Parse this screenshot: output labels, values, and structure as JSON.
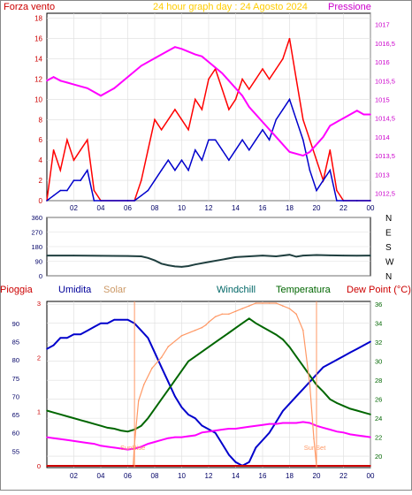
{
  "chart_data": [
    {
      "type": "line",
      "title": "24 hour graph day : 24 Agosto 2024",
      "left_label": "Forza vento",
      "right_label": "Pressione",
      "x_ticks": [
        "02",
        "04",
        "06",
        "08",
        "10",
        "12",
        "14",
        "16",
        "18",
        "20",
        "22",
        "00"
      ],
      "y_left_ticks": [
        "0",
        "2",
        "4",
        "6",
        "8",
        "10",
        "12",
        "14",
        "16",
        "18"
      ],
      "y_left_range": [
        0,
        18.5
      ],
      "y_right_ticks": [
        "1012,5",
        "1013",
        "1013,5",
        "1014",
        "1014,5",
        "1015",
        "1015,5",
        "1016",
        "1016,5",
        "1017"
      ],
      "y_right_range": [
        1012.3,
        1017.3
      ],
      "colors": {
        "gust": "#ff0000",
        "wind": "#0000cc",
        "pressure": "#ff00ff"
      },
      "series": [
        {
          "name": "",
          "axis": "left",
          "x": [
            0,
            0.5,
            1,
            1.5,
            2,
            2.5,
            3,
            3.5,
            4,
            6,
            6.5,
            7,
            7.5,
            8,
            8.5,
            9,
            9.5,
            10,
            10.5,
            11,
            11.5,
            12,
            12.5,
            13,
            13.5,
            14,
            14.5,
            15,
            15.5,
            16,
            16.5,
            17,
            17.5,
            18,
            18.5,
            19,
            19.5,
            20,
            20.5,
            21,
            21.5,
            22,
            23,
            24
          ],
          "values": [
            0,
            5,
            3,
            6,
            4,
            5,
            6,
            1,
            0,
            0,
            0,
            2,
            5,
            8,
            7,
            8,
            9,
            8,
            7,
            10,
            9,
            12,
            13,
            11,
            9,
            10,
            12,
            11,
            12,
            13,
            12,
            13,
            14,
            16,
            12,
            8,
            6,
            4,
            2,
            5,
            1,
            0,
            0,
            0
          ]
        },
        {
          "name": "",
          "axis": "left",
          "x": [
            0,
            0.5,
            1,
            1.5,
            2,
            2.5,
            3,
            3.5,
            4,
            6,
            6.5,
            7,
            7.5,
            8,
            8.5,
            9,
            9.5,
            10,
            10.5,
            11,
            11.5,
            12,
            12.5,
            13,
            13.5,
            14,
            14.5,
            15,
            15.5,
            16,
            16.5,
            17,
            17.5,
            18,
            18.5,
            19,
            19.5,
            20,
            20.5,
            21,
            21.5,
            22,
            23,
            24
          ],
          "values": [
            0,
            0.5,
            1,
            1,
            2,
            2,
            3,
            0,
            0,
            0,
            0,
            0.5,
            1,
            2,
            3,
            4,
            3,
            4,
            3,
            5,
            4,
            6,
            6,
            5,
            4,
            5,
            6,
            5,
            6,
            7,
            6,
            8,
            9,
            10,
            8,
            6,
            3,
            1,
            2,
            3,
            0,
            0,
            0,
            0
          ]
        },
        {
          "name": "",
          "axis": "right",
          "x": [
            0,
            0.5,
            1,
            1.5,
            2,
            3,
            4,
            5,
            6,
            7,
            8,
            9,
            9.5,
            10,
            11,
            11.5,
            12,
            13,
            14,
            14.5,
            15,
            16,
            17,
            17.5,
            18,
            19,
            19.5,
            20,
            20.5,
            21,
            22,
            23,
            23.5,
            24
          ],
          "values": [
            1015.5,
            1015.6,
            1015.5,
            1015.45,
            1015.4,
            1015.3,
            1015.1,
            1015.3,
            1015.6,
            1015.9,
            1016.1,
            1016.3,
            1016.4,
            1016.35,
            1016.2,
            1016.15,
            1016.0,
            1015.7,
            1015.3,
            1015.1,
            1014.8,
            1014.4,
            1014.0,
            1013.8,
            1013.6,
            1013.5,
            1013.6,
            1013.8,
            1014.0,
            1014.3,
            1014.5,
            1014.7,
            1014.6,
            1014.6
          ]
        }
      ]
    },
    {
      "type": "line",
      "y_ticks": [
        "0",
        "90",
        "180",
        "270",
        "360"
      ],
      "y_range": [
        0,
        360
      ],
      "dir_labels": [
        "N",
        "W",
        "S",
        "E",
        "N"
      ],
      "series": [
        {
          "name": "",
          "color": "#1f3f3f",
          "x": [
            0,
            2,
            4,
            6,
            7,
            7.5,
            8,
            8.5,
            9,
            9.5,
            10,
            10.5,
            11,
            12,
            13,
            14,
            15,
            16,
            17,
            18,
            18.5,
            19,
            20,
            21,
            22,
            23,
            24
          ],
          "values": [
            125,
            125,
            123,
            122,
            120,
            110,
            95,
            75,
            65,
            58,
            55,
            60,
            70,
            85,
            100,
            115,
            120,
            125,
            120,
            130,
            118,
            125,
            128,
            126,
            125,
            124,
            125
          ]
        }
      ]
    },
    {
      "type": "line",
      "labels": [
        "Pioggia",
        "Umidita",
        "Solar",
        "Windchill",
        "Temperatura",
        "Dew Point (°C)"
      ],
      "label_colors": [
        "#cc0000",
        "#000099",
        "#cc9966",
        "#006666",
        "#006600",
        "#cc0000"
      ],
      "x_ticks": [
        "02",
        "04",
        "06",
        "08",
        "10",
        "12",
        "14",
        "16",
        "18",
        "20",
        "22",
        "00"
      ],
      "y_left_ticks": [
        "55",
        "60",
        "65",
        "70",
        "75",
        "80",
        "85",
        "90"
      ],
      "y_left_range": [
        50.5,
        96
      ],
      "y_rain_ticks": [
        "0",
        "1",
        "2",
        "3"
      ],
      "y_right_ticks": [
        "20",
        "22",
        "24",
        "26",
        "28",
        "30",
        "32",
        "34",
        "36"
      ],
      "y_right_range": [
        18.8,
        36.3
      ],
      "annotations": [
        "SunRise",
        "SunSet"
      ],
      "series": [
        {
          "name": "Umidita",
          "color": "#0000cc",
          "axis": "left",
          "x": [
            0,
            0.5,
            1,
            1.5,
            2,
            2.5,
            3,
            3.5,
            4,
            4.5,
            5,
            5.5,
            6,
            6.5,
            7,
            7.5,
            8,
            8.5,
            9,
            9.5,
            10,
            10.5,
            11,
            11.5,
            12,
            12.5,
            13,
            13.5,
            14,
            14.5,
            15,
            15.5,
            16,
            16.5,
            17,
            17.5,
            18,
            18.5,
            19,
            19.5,
            20,
            20.5,
            21,
            21.5,
            22,
            22.5,
            23,
            23.5,
            24
          ],
          "values": [
            83,
            84,
            86,
            86,
            87,
            87,
            88,
            89,
            90,
            90,
            91,
            91,
            91,
            90,
            88,
            86,
            82,
            78,
            74,
            70,
            67,
            65,
            64,
            62,
            61,
            60,
            57,
            54,
            52,
            51,
            52,
            56,
            58,
            60,
            63,
            66,
            68,
            70,
            72,
            74,
            76,
            78,
            79,
            80,
            81,
            82,
            83,
            84,
            85
          ]
        },
        {
          "name": "Temperatura",
          "color": "#006600",
          "axis": "right",
          "x": [
            0,
            0.5,
            1,
            1.5,
            2,
            2.5,
            3,
            3.5,
            4,
            4.5,
            5,
            5.5,
            6,
            6.5,
            7,
            7.5,
            8,
            8.5,
            9,
            9.5,
            10,
            10.5,
            11,
            11.5,
            12,
            12.5,
            13,
            13.5,
            14,
            14.5,
            15,
            15.5,
            16,
            16.5,
            17,
            17.5,
            18,
            18.5,
            19,
            19.5,
            20,
            20.5,
            21,
            21.5,
            22,
            22.5,
            23,
            23.5,
            24
          ],
          "values": [
            24.8,
            24.6,
            24.4,
            24.2,
            24,
            23.8,
            23.6,
            23.4,
            23.2,
            23,
            22.9,
            22.7,
            22.6,
            22.8,
            23.2,
            24,
            25,
            26,
            27,
            28,
            29,
            30,
            30.5,
            31,
            31.5,
            32,
            32.5,
            33,
            33.5,
            34,
            34.5,
            34,
            33.6,
            33.2,
            32.8,
            32.3,
            31.5,
            30.5,
            29.5,
            28.5,
            27.5,
            26.8,
            26,
            25.6,
            25.3,
            25,
            24.8,
            24.6,
            24.4
          ]
        },
        {
          "name": "Dew Point (°C)",
          "color": "#ff00ff",
          "axis": "right",
          "x": [
            0,
            0.5,
            1,
            1.5,
            2,
            2.5,
            3,
            3.5,
            4,
            4.5,
            5,
            5.5,
            6,
            6.5,
            7,
            7.5,
            8,
            8.5,
            9,
            9.5,
            10,
            10.5,
            11,
            11.5,
            12,
            12.5,
            13,
            13.5,
            14,
            14.5,
            15,
            15.5,
            16,
            16.5,
            17,
            17.5,
            18,
            18.5,
            19,
            19.5,
            20,
            20.5,
            21,
            21.5,
            22,
            22.5,
            23,
            23.5,
            24
          ],
          "values": [
            22,
            21.9,
            21.8,
            21.7,
            21.6,
            21.5,
            21.4,
            21.3,
            21.1,
            21,
            20.9,
            20.8,
            20.7,
            20.8,
            21,
            21.3,
            21.5,
            21.7,
            21.9,
            22,
            22,
            22.1,
            22.2,
            22.5,
            22.6,
            22.7,
            22.8,
            22.9,
            22.9,
            23,
            23.1,
            23.2,
            23.3,
            23.4,
            23.4,
            23.5,
            23.5,
            23.5,
            23.6,
            23.5,
            23.2,
            23,
            22.8,
            22.6,
            22.5,
            22.3,
            22.2,
            22.1,
            22
          ]
        },
        {
          "name": "Solar",
          "color": "#ff9966",
          "axis": "rain",
          "x": [
            0,
            6.4,
            6.5,
            6.8,
            7.2,
            7.8,
            8.5,
            9,
            10,
            11,
            11.5,
            11.8,
            12,
            12.5,
            13,
            13.5,
            14,
            14.5,
            15,
            15.5,
            16,
            16.5,
            17,
            17.5,
            18,
            18.5,
            19,
            19.5,
            19.8,
            20
          ],
          "values": [
            0,
            0,
            0.4,
            1.2,
            1.5,
            1.8,
            2.0,
            2.2,
            2.4,
            2.5,
            2.55,
            2.6,
            2.65,
            2.75,
            2.8,
            2.8,
            2.85,
            2.9,
            2.95,
            3.0,
            3.0,
            3.0,
            3.0,
            2.95,
            2.9,
            2.8,
            2.5,
            1.5,
            0.5,
            0
          ]
        },
        {
          "name": "Windchill",
          "color": "#006666",
          "axis": "right",
          "x": [],
          "values": []
        },
        {
          "name": "Pioggia",
          "color": "#cc0000",
          "axis": "rain",
          "x": [
            0,
            24
          ],
          "values": [
            0,
            0
          ]
        }
      ]
    }
  ]
}
